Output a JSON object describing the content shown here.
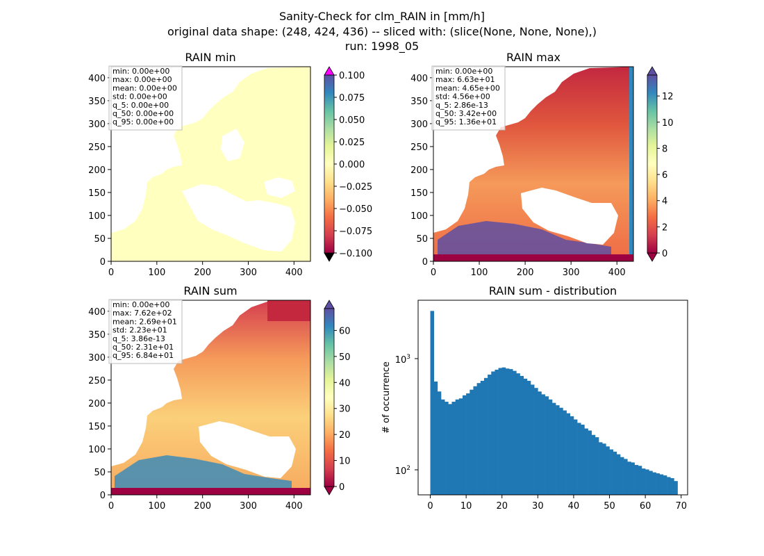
{
  "figure": {
    "suptitle_lines": [
      "Sanity-Check for clm_RAIN in [mm/h]",
      "original data shape: (248, 424, 436) -- sliced with: (slice(None, None, None),)",
      "run: 1998_05"
    ]
  },
  "chart_data": [
    {
      "type": "heatmap",
      "title": "RAIN min",
      "xlim": [
        0,
        436
      ],
      "ylim": [
        0,
        424
      ],
      "xticks": [
        "0",
        "100",
        "200",
        "300",
        "400"
      ],
      "yticks": [
        "0",
        "50",
        "100",
        "150",
        "200",
        "250",
        "300",
        "350",
        "400"
      ],
      "colormap": "Spectral",
      "colorbar": {
        "range": [
          -0.1,
          0.1
        ],
        "extend": "both",
        "ticks": [
          "0.100",
          "0.075",
          "0.050",
          "0.025",
          "0.000",
          "−0.025",
          "−0.050",
          "−0.075",
          "−0.100"
        ]
      },
      "stats": [
        "min: 0.00e+00",
        "max: 0.00e+00",
        "mean: 0.00e+00",
        "std: 0.00e+00",
        "q_5: 0.00e+00",
        "q_50: 0.00e+00",
        "q_95: 0.00e+00"
      ]
    },
    {
      "type": "heatmap",
      "title": "RAIN max",
      "xlim": [
        0,
        436
      ],
      "ylim": [
        0,
        424
      ],
      "xticks": [
        "0",
        "100",
        "200",
        "300",
        "400"
      ],
      "yticks": [
        "0",
        "50",
        "100",
        "150",
        "200",
        "250",
        "300",
        "350",
        "400"
      ],
      "colormap": "Spectral",
      "colorbar": {
        "range": [
          0,
          13.6
        ],
        "extend": "both",
        "ticks": [
          "12",
          "10",
          "8",
          "6",
          "4",
          "2",
          "0"
        ]
      },
      "stats": [
        "min: 0.00e+00",
        "max: 6.63e+01",
        "mean: 4.65e+00",
        "std: 4.56e+00",
        "q_5: 2.86e-13",
        "q_50: 3.42e+00",
        "q_95: 1.36e+01"
      ]
    },
    {
      "type": "heatmap",
      "title": "RAIN sum",
      "xlim": [
        0,
        436
      ],
      "ylim": [
        0,
        424
      ],
      "xticks": [
        "0",
        "100",
        "200",
        "300",
        "400"
      ],
      "yticks": [
        "0",
        "50",
        "100",
        "150",
        "200",
        "250",
        "300",
        "350",
        "400"
      ],
      "colormap": "Spectral",
      "colorbar": {
        "range": [
          0,
          68.4
        ],
        "extend": "both",
        "ticks": [
          "60",
          "50",
          "40",
          "30",
          "20",
          "10",
          "0"
        ]
      },
      "stats": [
        "min: 0.00e+00",
        "max: 7.62e+02",
        "mean: 2.69e+01",
        "std: 2.23e+01",
        "q_5: 3.86e-13",
        "q_50: 2.31e+01",
        "q_95: 6.84e+01"
      ]
    },
    {
      "type": "bar",
      "title": "RAIN sum - distribution",
      "xlabel": "",
      "ylabel": "# of occurrence",
      "yscale": "log",
      "xlim": [
        -3.4,
        71.8
      ],
      "ylim": [
        60,
        3500
      ],
      "xticks": [
        "0",
        "10",
        "20",
        "30",
        "40",
        "50",
        "60",
        "70"
      ],
      "yticks": [
        "10",
        "10"
      ],
      "ytick_exps": [
        "3",
        "2"
      ],
      "color": "#1f77b4",
      "x": [
        0,
        1,
        2,
        3,
        4,
        5,
        6,
        7,
        8,
        9,
        10,
        11,
        12,
        13,
        14,
        15,
        16,
        17,
        18,
        19,
        20,
        21,
        22,
        23,
        24,
        25,
        26,
        27,
        28,
        29,
        30,
        31,
        32,
        33,
        34,
        35,
        36,
        37,
        38,
        39,
        40,
        41,
        42,
        43,
        44,
        45,
        46,
        47,
        48,
        49,
        50,
        51,
        52,
        53,
        54,
        55,
        56,
        57,
        58,
        59,
        60,
        61,
        62,
        63,
        64,
        65,
        66,
        67,
        68
      ],
      "values": [
        2800,
        640,
        520,
        440,
        420,
        400,
        420,
        440,
        450,
        480,
        500,
        540,
        580,
        620,
        650,
        690,
        740,
        790,
        820,
        850,
        860,
        840,
        830,
        800,
        760,
        720,
        680,
        650,
        600,
        560,
        520,
        490,
        470,
        440,
        410,
        390,
        370,
        350,
        330,
        310,
        290,
        270,
        260,
        240,
        230,
        210,
        200,
        180,
        175,
        165,
        155,
        148,
        140,
        132,
        127,
        120,
        118,
        112,
        110,
        104,
        102,
        99,
        96,
        94,
        92,
        90,
        87,
        85,
        80
      ]
    }
  ]
}
